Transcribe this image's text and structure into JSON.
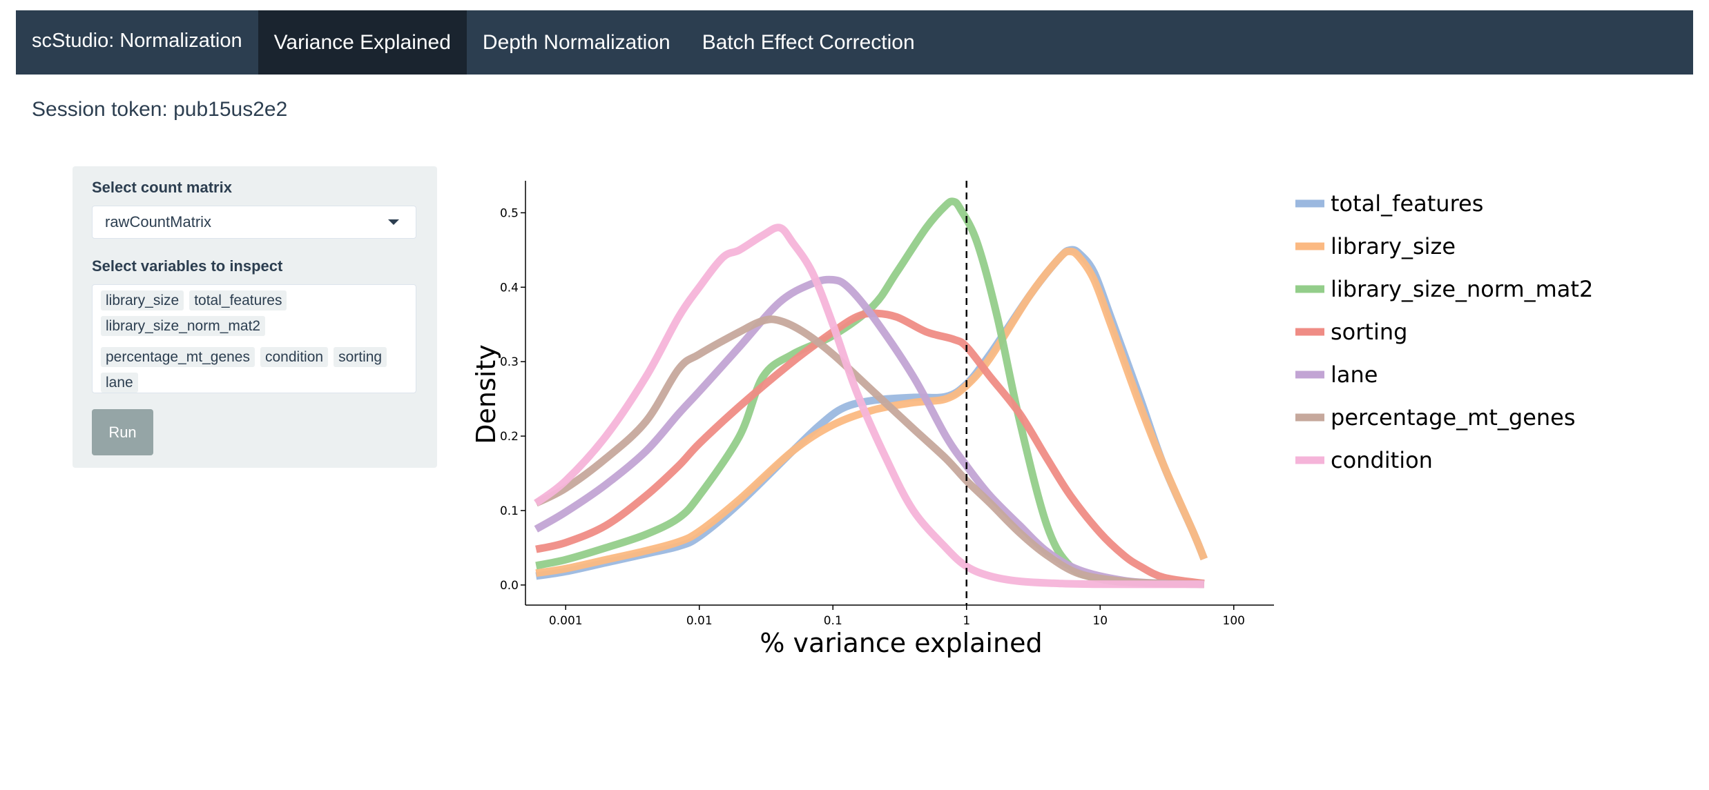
{
  "navbar": {
    "brand": "scStudio: Normalization",
    "tabs": [
      {
        "label": "Variance Explained",
        "active": true
      },
      {
        "label": "Depth Normalization",
        "active": false
      },
      {
        "label": "Batch Effect Correction",
        "active": false
      }
    ]
  },
  "session": {
    "text": "Session token: pub15us2e2"
  },
  "sidebar": {
    "count_matrix_label": "Select count matrix",
    "count_matrix_value": "rawCountMatrix",
    "variables_label": "Select variables to inspect",
    "variables": [
      "library_size",
      "total_features",
      "library_size_norm_mat2",
      "percentage_mt_genes",
      "condition",
      "sorting",
      "lane"
    ],
    "run_label": "Run"
  },
  "chart_data": {
    "type": "line",
    "xlabel": "% variance explained",
    "ylabel": "Density",
    "xscale": "log",
    "xlim": [
      0.0005,
      200
    ],
    "ylim": [
      -0.027,
      0.543
    ],
    "xticks": [
      {
        "v": 0.001,
        "label": "0.001"
      },
      {
        "v": 0.01,
        "label": "0.01"
      },
      {
        "v": 0.1,
        "label": "0.1"
      },
      {
        "v": 1,
        "label": "1"
      },
      {
        "v": 10,
        "label": "10"
      },
      {
        "v": 100,
        "label": "100"
      }
    ],
    "yticks": [
      {
        "v": 0.0,
        "label": "0.0"
      },
      {
        "v": 0.1,
        "label": "0.1"
      },
      {
        "v": 0.2,
        "label": "0.2"
      },
      {
        "v": 0.3,
        "label": "0.3"
      },
      {
        "v": 0.4,
        "label": "0.4"
      },
      {
        "v": 0.5,
        "label": "0.5"
      }
    ],
    "vline": {
      "x": 1,
      "style": "dashed"
    },
    "legend_position": "right",
    "series": [
      {
        "name": "total_features",
        "color": "#9bb8df",
        "points": [
          [
            0.0006,
            0.012
          ],
          [
            0.001,
            0.018
          ],
          [
            0.002,
            0.03
          ],
          [
            0.004,
            0.042
          ],
          [
            0.007,
            0.052
          ],
          [
            0.01,
            0.065
          ],
          [
            0.02,
            0.11
          ],
          [
            0.05,
            0.18
          ],
          [
            0.08,
            0.215
          ],
          [
            0.12,
            0.238
          ],
          [
            0.2,
            0.248
          ],
          [
            0.4,
            0.252
          ],
          [
            0.7,
            0.253
          ],
          [
            1,
            0.27
          ],
          [
            1.5,
            0.31
          ],
          [
            3,
            0.39
          ],
          [
            5,
            0.44
          ],
          [
            6,
            0.45
          ],
          [
            7,
            0.445
          ],
          [
            9,
            0.42
          ],
          [
            12,
            0.36
          ],
          [
            20,
            0.25
          ],
          [
            30,
            0.16
          ],
          [
            50,
            0.07
          ],
          [
            60,
            0.035
          ]
        ]
      },
      {
        "name": "library_size",
        "color": "#fbb982",
        "points": [
          [
            0.0006,
            0.016
          ],
          [
            0.001,
            0.022
          ],
          [
            0.002,
            0.034
          ],
          [
            0.004,
            0.046
          ],
          [
            0.007,
            0.058
          ],
          [
            0.01,
            0.072
          ],
          [
            0.02,
            0.115
          ],
          [
            0.05,
            0.18
          ],
          [
            0.1,
            0.215
          ],
          [
            0.2,
            0.235
          ],
          [
            0.4,
            0.245
          ],
          [
            0.7,
            0.25
          ],
          [
            1,
            0.268
          ],
          [
            1.5,
            0.305
          ],
          [
            3,
            0.39
          ],
          [
            5,
            0.44
          ],
          [
            6,
            0.448
          ],
          [
            7,
            0.44
          ],
          [
            9,
            0.41
          ],
          [
            12,
            0.35
          ],
          [
            20,
            0.24
          ],
          [
            30,
            0.16
          ],
          [
            50,
            0.07
          ],
          [
            60,
            0.035
          ]
        ]
      },
      {
        "name": "library_size_norm_mat2",
        "color": "#93cd8a",
        "points": [
          [
            0.0006,
            0.026
          ],
          [
            0.001,
            0.034
          ],
          [
            0.002,
            0.05
          ],
          [
            0.004,
            0.068
          ],
          [
            0.007,
            0.09
          ],
          [
            0.01,
            0.12
          ],
          [
            0.02,
            0.2
          ],
          [
            0.03,
            0.28
          ],
          [
            0.05,
            0.31
          ],
          [
            0.1,
            0.335
          ],
          [
            0.2,
            0.375
          ],
          [
            0.3,
            0.42
          ],
          [
            0.5,
            0.48
          ],
          [
            0.7,
            0.51
          ],
          [
            0.8,
            0.515
          ],
          [
            0.9,
            0.505
          ],
          [
            1.2,
            0.46
          ],
          [
            1.7,
            0.36
          ],
          [
            2.5,
            0.22
          ],
          [
            4,
            0.08
          ],
          [
            6,
            0.025
          ],
          [
            10,
            0.008
          ],
          [
            20,
            0.003
          ],
          [
            60,
            0.002
          ]
        ]
      },
      {
        "name": "sorting",
        "color": "#ef8c85",
        "points": [
          [
            0.0006,
            0.048
          ],
          [
            0.001,
            0.057
          ],
          [
            0.002,
            0.08
          ],
          [
            0.004,
            0.12
          ],
          [
            0.007,
            0.16
          ],
          [
            0.01,
            0.19
          ],
          [
            0.02,
            0.24
          ],
          [
            0.05,
            0.3
          ],
          [
            0.1,
            0.34
          ],
          [
            0.15,
            0.36
          ],
          [
            0.2,
            0.365
          ],
          [
            0.3,
            0.36
          ],
          [
            0.5,
            0.34
          ],
          [
            0.8,
            0.33
          ],
          [
            1,
            0.32
          ],
          [
            1.5,
            0.28
          ],
          [
            2.5,
            0.23
          ],
          [
            4,
            0.17
          ],
          [
            6,
            0.12
          ],
          [
            10,
            0.07
          ],
          [
            15,
            0.04
          ],
          [
            20,
            0.025
          ],
          [
            30,
            0.01
          ],
          [
            60,
            0.002
          ]
        ]
      },
      {
        "name": "lane",
        "color": "#c2a4d4",
        "points": [
          [
            0.0006,
            0.075
          ],
          [
            0.001,
            0.098
          ],
          [
            0.002,
            0.135
          ],
          [
            0.004,
            0.18
          ],
          [
            0.007,
            0.23
          ],
          [
            0.01,
            0.26
          ],
          [
            0.02,
            0.32
          ],
          [
            0.04,
            0.38
          ],
          [
            0.07,
            0.405
          ],
          [
            0.1,
            0.41
          ],
          [
            0.13,
            0.4
          ],
          [
            0.2,
            0.36
          ],
          [
            0.4,
            0.28
          ],
          [
            0.7,
            0.2
          ],
          [
            1,
            0.16
          ],
          [
            1.5,
            0.12
          ],
          [
            2.5,
            0.08
          ],
          [
            4,
            0.045
          ],
          [
            7,
            0.02
          ],
          [
            15,
            0.006
          ],
          [
            30,
            0.002
          ],
          [
            60,
            0.001
          ]
        ]
      },
      {
        "name": "percentage_mt_genes",
        "color": "#c6a89c",
        "points": [
          [
            0.0006,
            0.11
          ],
          [
            0.001,
            0.13
          ],
          [
            0.002,
            0.17
          ],
          [
            0.004,
            0.22
          ],
          [
            0.007,
            0.29
          ],
          [
            0.01,
            0.31
          ],
          [
            0.02,
            0.34
          ],
          [
            0.03,
            0.355
          ],
          [
            0.04,
            0.355
          ],
          [
            0.06,
            0.34
          ],
          [
            0.1,
            0.31
          ],
          [
            0.2,
            0.26
          ],
          [
            0.4,
            0.21
          ],
          [
            0.7,
            0.17
          ],
          [
            1,
            0.14
          ],
          [
            1.5,
            0.11
          ],
          [
            2.5,
            0.07
          ],
          [
            4,
            0.04
          ],
          [
            7,
            0.015
          ],
          [
            15,
            0.005
          ],
          [
            30,
            0.002
          ],
          [
            60,
            0.001
          ]
        ]
      },
      {
        "name": "condition",
        "color": "#f5b4d9",
        "points": [
          [
            0.0006,
            0.11
          ],
          [
            0.001,
            0.14
          ],
          [
            0.002,
            0.2
          ],
          [
            0.004,
            0.28
          ],
          [
            0.007,
            0.36
          ],
          [
            0.01,
            0.4
          ],
          [
            0.015,
            0.44
          ],
          [
            0.02,
            0.45
          ],
          [
            0.03,
            0.47
          ],
          [
            0.04,
            0.48
          ],
          [
            0.05,
            0.46
          ],
          [
            0.07,
            0.42
          ],
          [
            0.1,
            0.35
          ],
          [
            0.15,
            0.26
          ],
          [
            0.25,
            0.17
          ],
          [
            0.4,
            0.1
          ],
          [
            0.7,
            0.05
          ],
          [
            1,
            0.025
          ],
          [
            1.5,
            0.012
          ],
          [
            2.5,
            0.005
          ],
          [
            5,
            0.002
          ],
          [
            10,
            0.001
          ],
          [
            60,
            0.001
          ]
        ]
      }
    ]
  }
}
